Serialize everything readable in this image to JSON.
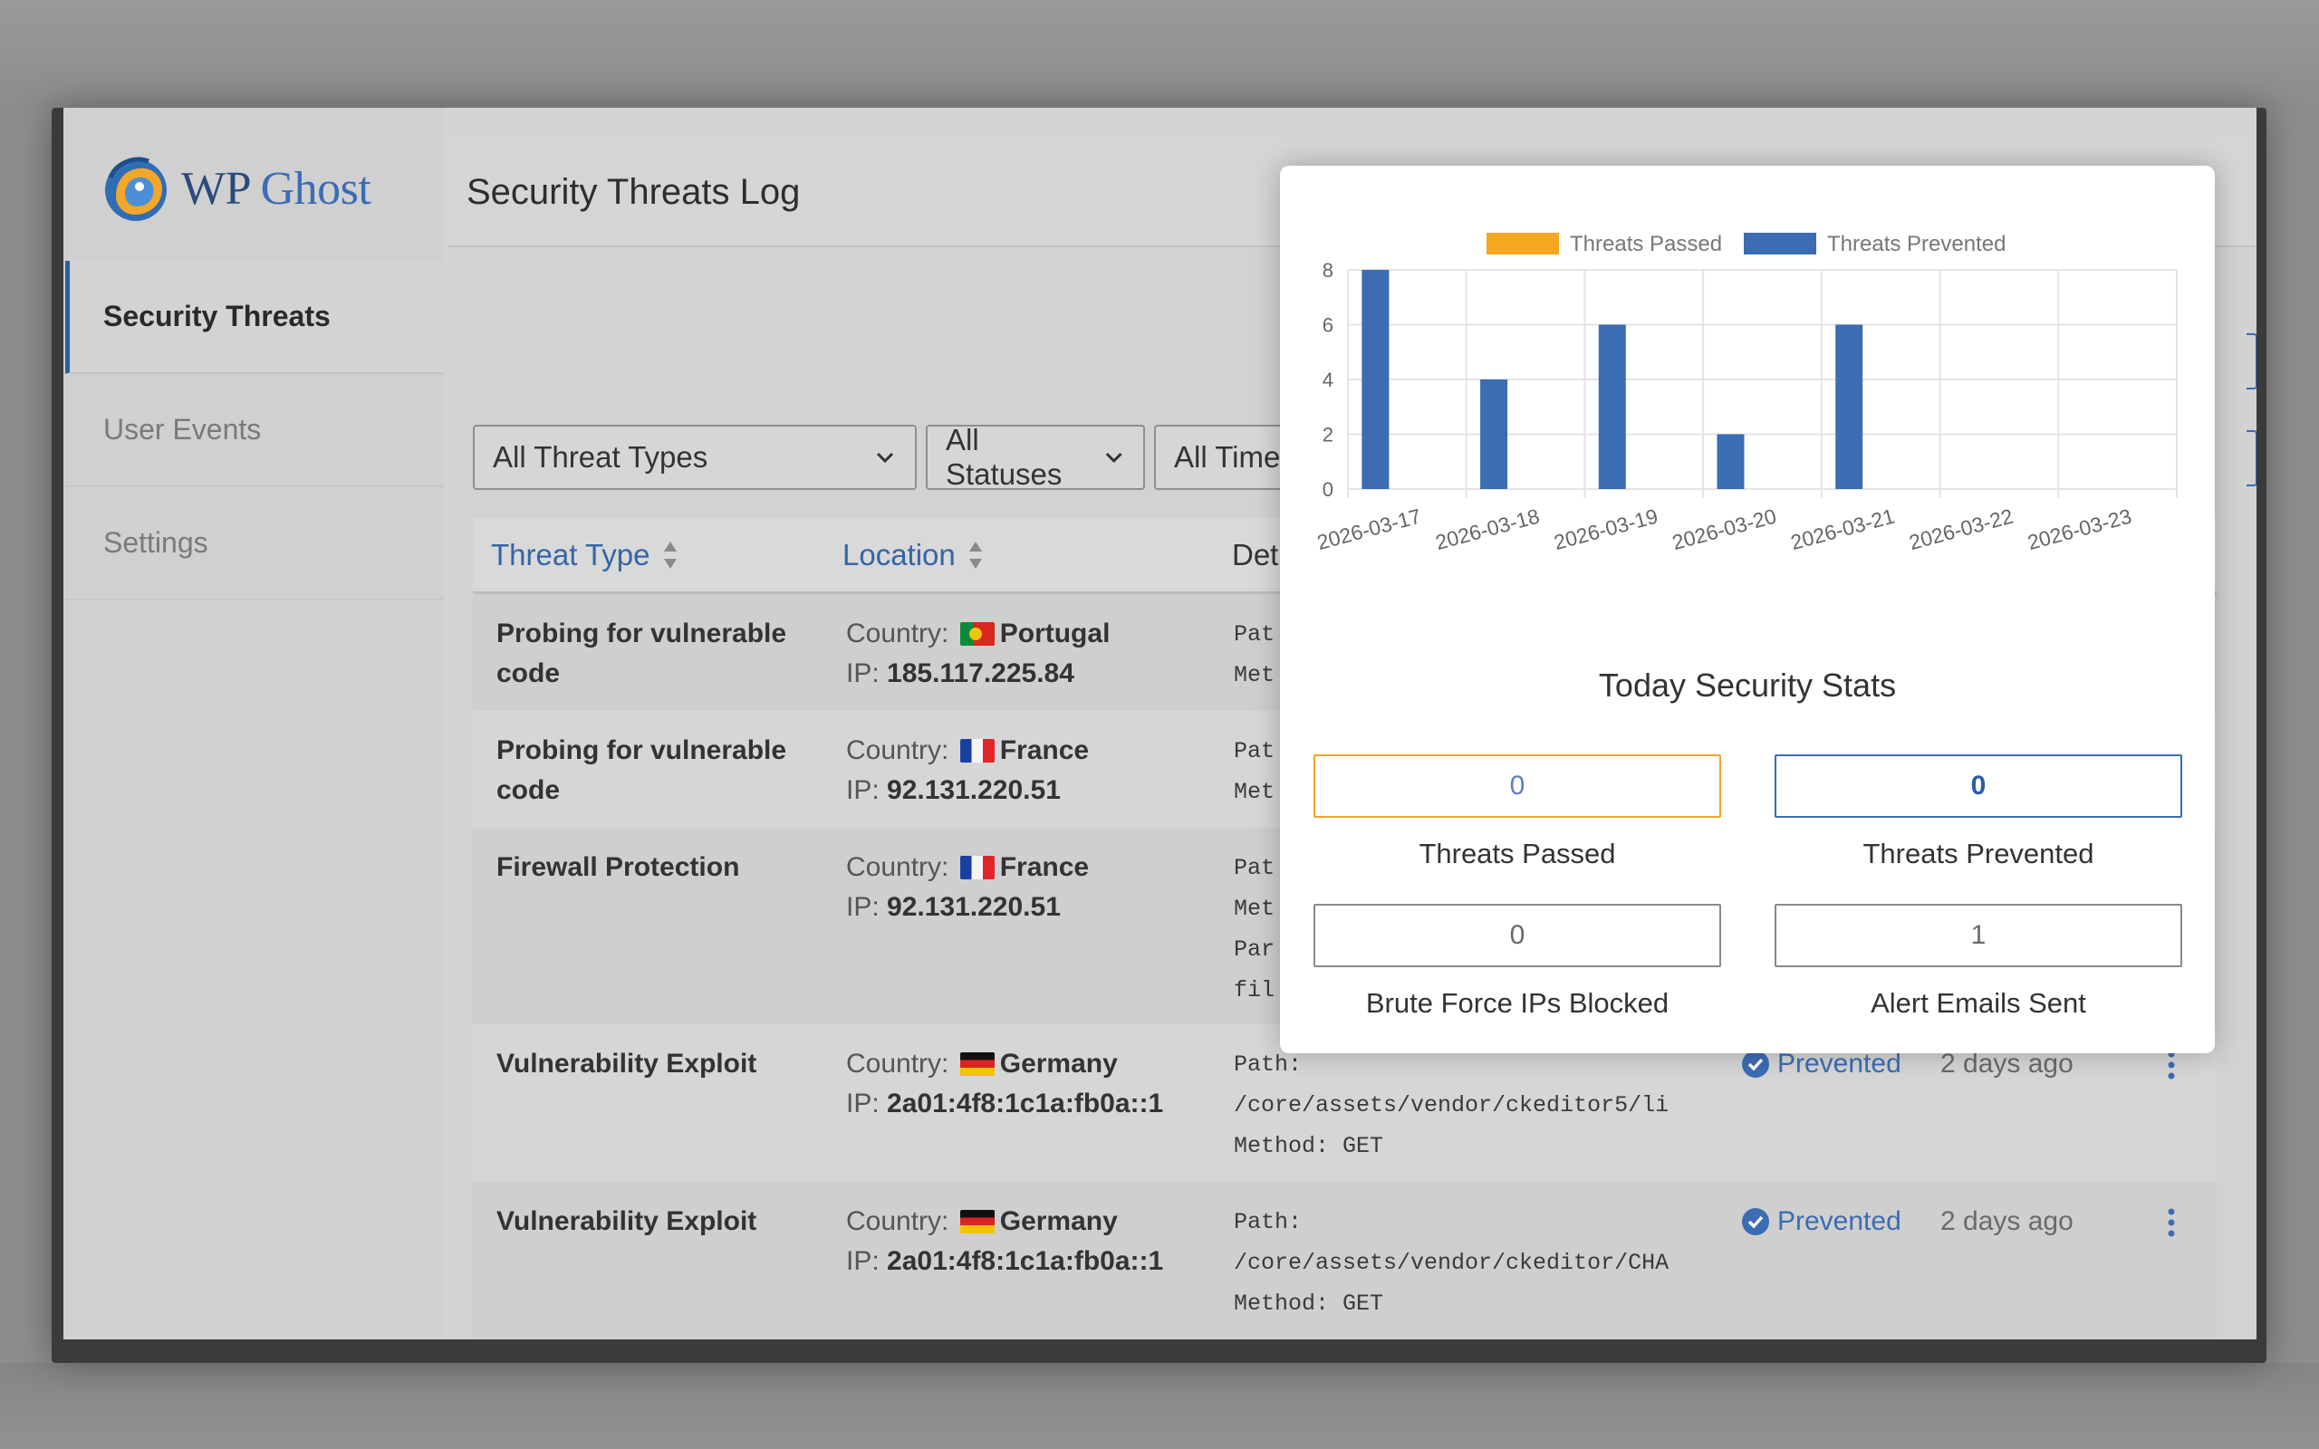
{
  "app": {
    "logo_wp": "WP",
    "logo_ghost": "Ghost"
  },
  "sidebar": {
    "items": [
      {
        "label": "Security Threats",
        "active": true
      },
      {
        "label": "User Events",
        "active": false
      },
      {
        "label": "Settings",
        "active": false
      }
    ]
  },
  "header": {
    "title": "Security Threats Log"
  },
  "filters": {
    "threat_type": "All Threat Types",
    "status": "All Statuses",
    "time": "All Time"
  },
  "table": {
    "columns": [
      "Threat Type",
      "Location",
      "Det"
    ],
    "country_label": "Country:",
    "ip_label": "IP:",
    "rows": [
      {
        "type_l1": "Probing for vulnerable",
        "type_l2": "code",
        "country": "Portugal",
        "ip": "185.117.225.84",
        "details": [
          "Pat",
          "Met"
        ],
        "status": "",
        "time": ""
      },
      {
        "type_l1": "Probing for vulnerable",
        "type_l2": "code",
        "country": "France",
        "ip": "92.131.220.51",
        "details": [
          "Pat",
          "Met"
        ],
        "status": "",
        "time": ""
      },
      {
        "type_l1": "Firewall Protection",
        "type_l2": "",
        "country": "France",
        "ip": "92.131.220.51",
        "details": [
          "Pat",
          "Met",
          "Par",
          "fil"
        ],
        "status": "",
        "time": ""
      },
      {
        "type_l1": "Vulnerability Exploit",
        "type_l2": "",
        "country": "Germany",
        "ip": "2a01:4f8:1c1a:fb0a::1",
        "details": [
          "Path:",
          "/core/assets/vendor/ckeditor5/li",
          "Method: GET"
        ],
        "status": "Prevented",
        "time": "2 days ago"
      },
      {
        "type_l1": "Vulnerability Exploit",
        "type_l2": "",
        "country": "Germany",
        "ip": "2a01:4f8:1c1a:fb0a::1",
        "details": [
          "Path:",
          "/core/assets/vendor/ckeditor/CHA",
          "Method: GET"
        ],
        "status": "Prevented",
        "time": "2 days ago"
      }
    ]
  },
  "modal": {
    "stats_title": "Today Security Stats",
    "stats": [
      {
        "label": "Threats Passed",
        "value": "0"
      },
      {
        "label": "Threats Prevented",
        "value": "0"
      },
      {
        "label": "Brute Force IPs Blocked",
        "value": "0"
      },
      {
        "label": "Alert Emails Sent",
        "value": "1"
      }
    ]
  },
  "colors": {
    "passed": "#f5a623",
    "prevented": "#3c6db3",
    "accent": "#3465a4"
  },
  "chart_data": {
    "type": "bar",
    "categories": [
      "2026-03-17",
      "2026-03-18",
      "2026-03-19",
      "2026-03-20",
      "2026-03-21",
      "2026-03-22",
      "2026-03-23"
    ],
    "series": [
      {
        "name": "Threats Passed",
        "values": [
          0,
          0,
          0,
          0,
          0,
          0,
          0
        ]
      },
      {
        "name": "Threats Prevented",
        "values": [
          8,
          4,
          6,
          2,
          6,
          0,
          0
        ]
      }
    ],
    "ylim": [
      0,
      8
    ],
    "yticks": [
      0,
      2,
      4,
      6,
      8
    ],
    "legend": "top",
    "grid": true
  }
}
